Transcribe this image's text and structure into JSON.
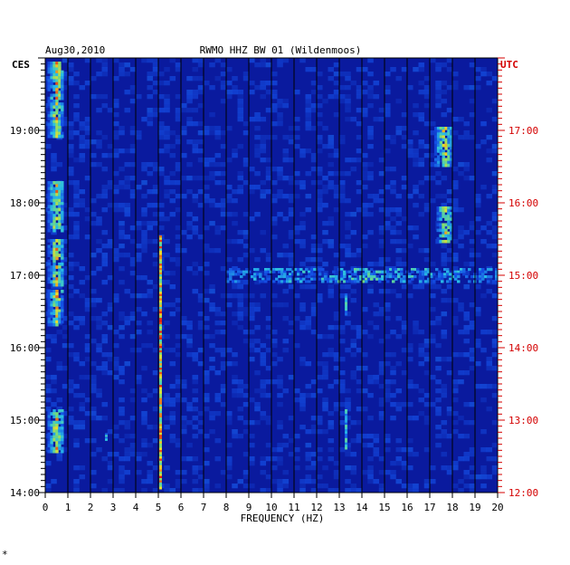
{
  "chart_data": {
    "type": "heatmap",
    "date": "Aug30,2010",
    "title": "RWMO HHZ BW 01 (Wildenmoos)",
    "left_timezone": "CES",
    "right_timezone": "UTC",
    "xlabel": "FREQUENCY (HZ)",
    "xlim": [
      0,
      20
    ],
    "x_ticks": [
      "0",
      "1",
      "2",
      "3",
      "4",
      "5",
      "6",
      "7",
      "8",
      "9",
      "10",
      "11",
      "12",
      "13",
      "14",
      "15",
      "16",
      "17",
      "18",
      "19",
      "20"
    ],
    "left_time_range_hours": [
      14,
      20
    ],
    "left_ticks": [
      {
        "t": 19,
        "label": "19:00"
      },
      {
        "t": 18,
        "label": "18:00"
      },
      {
        "t": 17,
        "label": "17:00"
      },
      {
        "t": 16,
        "label": "16:00"
      },
      {
        "t": 15,
        "label": "15:00"
      },
      {
        "t": 14,
        "label": "14:00"
      }
    ],
    "right_ticks": [
      {
        "t": 19,
        "label": "17:00"
      },
      {
        "t": 18,
        "label": "16:00"
      },
      {
        "t": 17,
        "label": "15:00"
      },
      {
        "t": 16,
        "label": "14:00"
      },
      {
        "t": 15,
        "label": "13:00"
      },
      {
        "t": 14,
        "label": "12:00"
      }
    ],
    "background_color": "#0a1a9e",
    "features": [
      {
        "name": "low-frequency-band",
        "f_range": [
          0.1,
          0.8
        ],
        "t_ranges": [
          [
            19.95,
            18.9
          ],
          [
            18.3,
            17.6
          ],
          [
            17.5,
            16.85
          ],
          [
            16.8,
            16.3
          ],
          [
            15.15,
            14.55
          ]
        ],
        "intensity": "high"
      },
      {
        "name": "5hz-spectral-line",
        "f": 5.1,
        "t_range": [
          14.05,
          17.55
        ],
        "intensity": "high"
      },
      {
        "name": "17-18hz-band-upper",
        "f_range": [
          17.2,
          18.0
        ],
        "t_range": [
          18.5,
          19.05
        ],
        "intensity": "high"
      },
      {
        "name": "17-18hz-band-mid",
        "f_range": [
          17.3,
          18.0
        ],
        "t_range": [
          17.45,
          17.95
        ],
        "intensity": "high"
      },
      {
        "name": "broadband-noise-17h",
        "f_range": [
          8.0,
          20.0
        ],
        "t_range": [
          16.9,
          17.1
        ],
        "intensity": "medium"
      },
      {
        "name": "line-13hz",
        "f": 13.3,
        "t_ranges": [
          [
            16.45,
            16.75
          ],
          [
            14.6,
            15.15
          ]
        ],
        "intensity": "medium"
      },
      {
        "name": "line-2.7hz",
        "f": 2.7,
        "t_range": [
          14.72,
          14.82
        ],
        "intensity": "medium"
      }
    ]
  },
  "footer_mark": "*"
}
